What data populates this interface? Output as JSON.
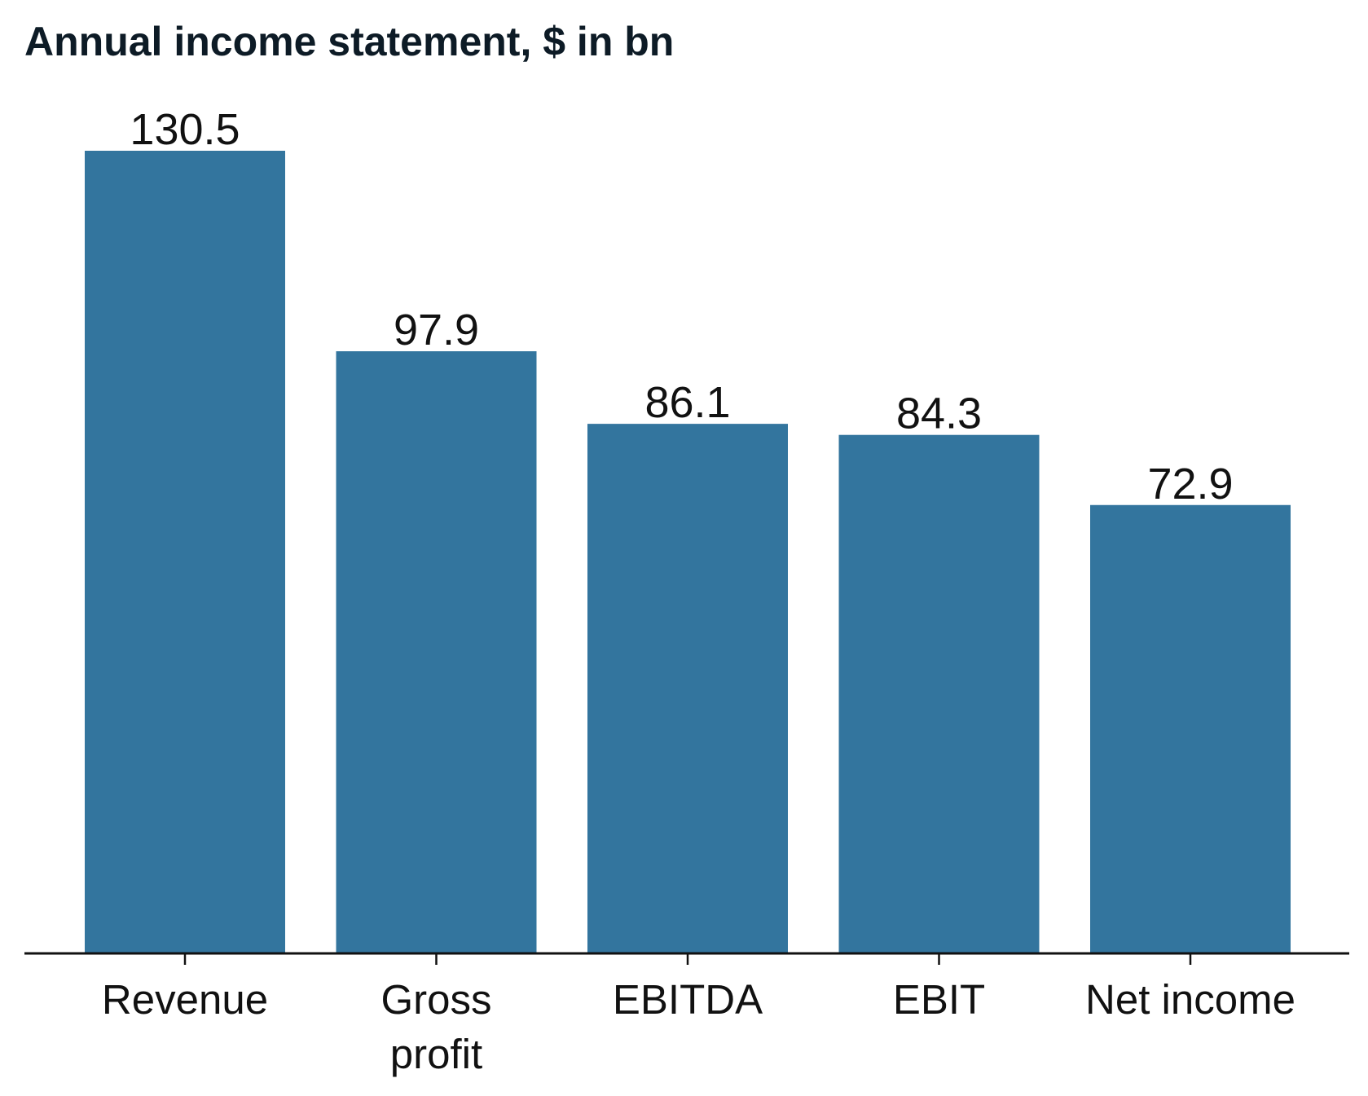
{
  "chart_data": {
    "type": "bar",
    "title": "Annual income statement, $ in bn",
    "categories": [
      [
        "Revenue"
      ],
      [
        "Gross",
        "profit"
      ],
      [
        "EBITDA"
      ],
      [
        "EBIT"
      ],
      [
        "Net income"
      ]
    ],
    "values": [
      130.5,
      97.9,
      86.1,
      84.3,
      72.9
    ],
    "value_labels": [
      "130.5",
      "97.9",
      "86.1",
      "84.3",
      "72.9"
    ],
    "ylim": [
      0,
      130.5
    ],
    "bar_color": "#33759e",
    "axis_color": "#111111",
    "grid": false,
    "legend": "none"
  }
}
